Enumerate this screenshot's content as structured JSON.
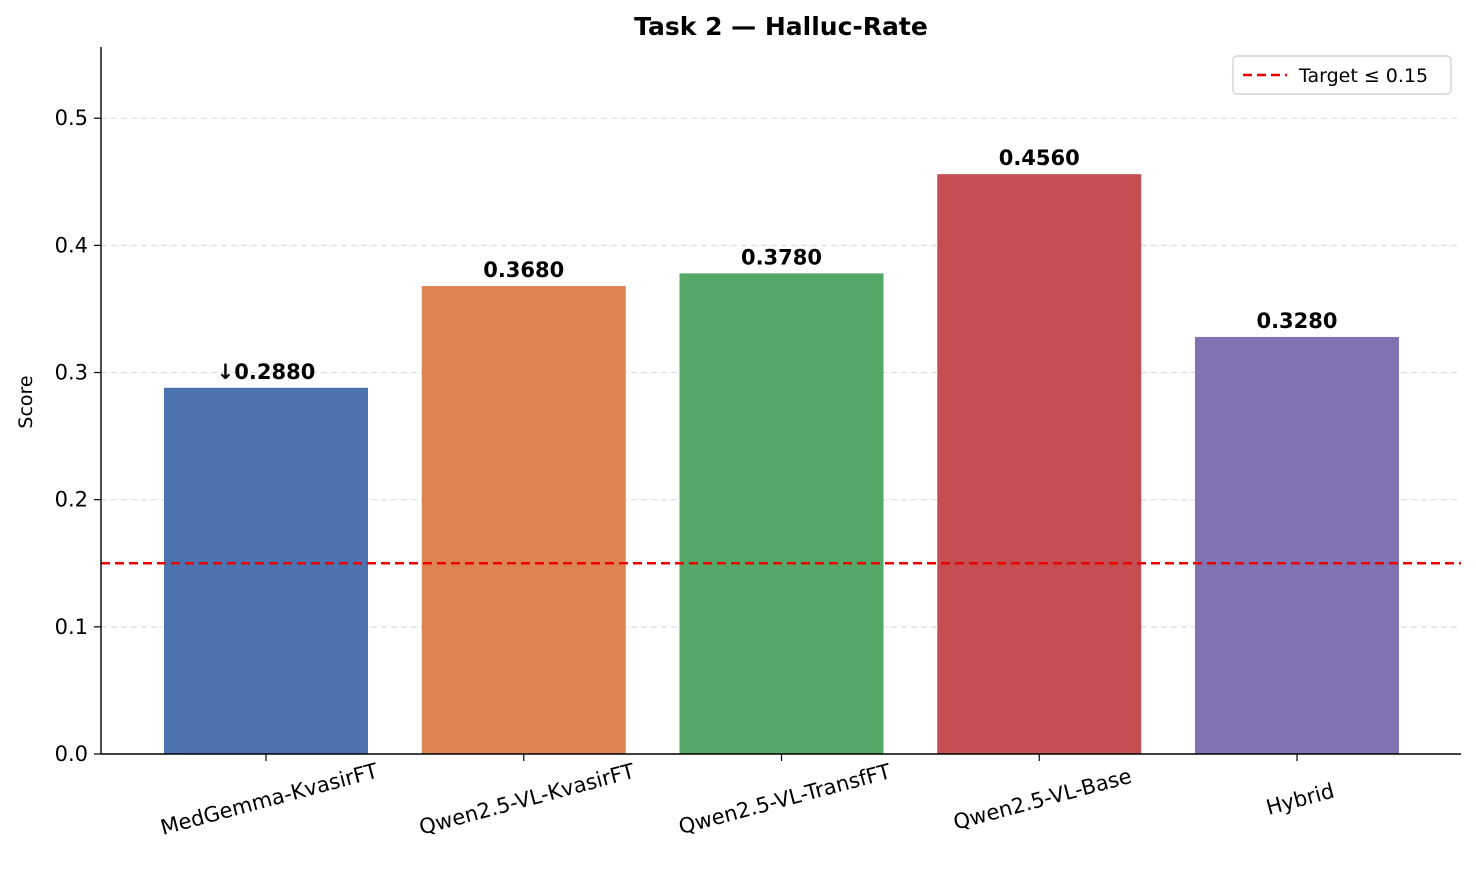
{
  "chart_data": {
    "type": "bar",
    "title": "Task 2 — Halluc-Rate",
    "xlabel": "",
    "ylabel": "Score",
    "ylim": [
      0,
      0.556
    ],
    "yticks": [
      "0.0",
      "0.1",
      "0.2",
      "0.3",
      "0.4",
      "0.5"
    ],
    "ytick_values": [
      0,
      0.1,
      0.2,
      0.3,
      0.4,
      0.5
    ],
    "grid": "y-dashed",
    "categories": [
      "MedGemma-KvasirFT",
      "Qwen2.5-VL-KvasirFT",
      "Qwen2.5-VL-TransfFT",
      "Qwen2.5-VL-Base",
      "Hybrid"
    ],
    "values": [
      0.288,
      0.368,
      0.378,
      0.456,
      0.328
    ],
    "value_labels": [
      "↓0.2880",
      "0.3680",
      "0.3780",
      "0.4560",
      "0.3280"
    ],
    "colors": [
      "#4c72b0",
      "#dd8452",
      "#55a868",
      "#c44e52",
      "#8172b2"
    ],
    "reference_line": {
      "value": 0.15,
      "label": "Target ≤ 0.15",
      "color": "#ee0000",
      "style": "dashed"
    },
    "legend_placement": "top-right"
  }
}
